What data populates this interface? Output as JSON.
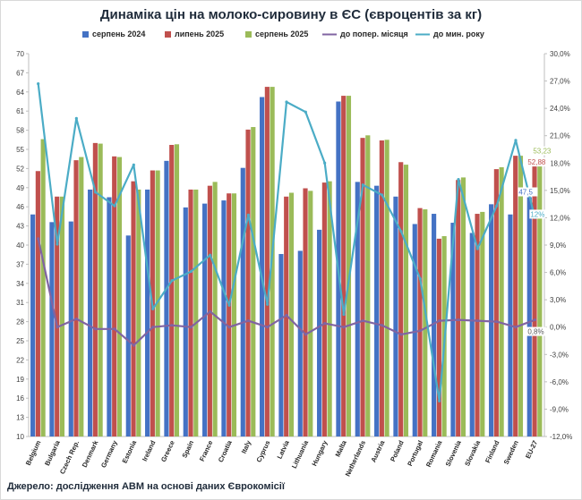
{
  "title": "Динаміка цін на молоко-сировину в ЄС (євроцентів за кг)",
  "source": "Джерело: дослідження АВМ на основі даних Єврокомісії",
  "chart_data": {
    "type": "bar",
    "categories": [
      "Belgium",
      "Bulgaria",
      "Czech Rep.",
      "Denmark",
      "Germany",
      "Estonia",
      "Ireland",
      "Greece",
      "Spain",
      "France",
      "Croatia",
      "Italy",
      "Cyprus",
      "Latvia",
      "Lithuania",
      "Hungary",
      "Malta",
      "Netherlands",
      "Austria",
      "Poland",
      "Portugal",
      "Romania",
      "Slovenia",
      "Slovakia",
      "Finland",
      "Sweden",
      "EU-27"
    ],
    "series": [
      {
        "name": "серпень 2024",
        "kind": "bar",
        "axis": "left",
        "color": "#4472c4",
        "values": [
          44.8,
          43.6,
          43.7,
          48.7,
          47.5,
          41.5,
          48.7,
          53.2,
          45.9,
          46.5,
          47.0,
          52.1,
          63.2,
          38.6,
          39.1,
          42.4,
          62.5,
          49.9,
          49.3,
          47.6,
          43.3,
          44.9,
          43.5,
          41.9,
          46.4,
          44.8,
          47.5
        ]
      },
      {
        "name": "липень 2025",
        "kind": "bar",
        "axis": "left",
        "color": "#c0504d",
        "values": [
          51.6,
          47.6,
          53.3,
          56.0,
          53.9,
          50.0,
          51.7,
          55.7,
          48.7,
          49.3,
          48.1,
          58.1,
          64.8,
          47.6,
          48.9,
          49.8,
          63.4,
          56.8,
          56.4,
          53.0,
          45.8,
          41.0,
          50.2,
          44.9,
          51.9,
          54.0,
          52.88
        ]
      },
      {
        "name": "серпень 2025",
        "kind": "bar",
        "axis": "left",
        "color": "#9bbb59",
        "values": [
          56.6,
          47.6,
          53.8,
          55.9,
          53.8,
          48.7,
          51.7,
          55.8,
          48.7,
          49.9,
          48.1,
          58.5,
          64.8,
          48.2,
          48.5,
          50.0,
          63.4,
          57.2,
          56.5,
          52.6,
          45.6,
          41.4,
          50.6,
          45.2,
          52.2,
          54.0,
          53.23
        ]
      },
      {
        "name": "до попер. місяця",
        "kind": "line",
        "axis": "right",
        "color": "#8064a2",
        "values": [
          9.7,
          0.0,
          0.9,
          -0.2,
          -0.2,
          -2.0,
          0.0,
          0.2,
          0.0,
          1.7,
          0.0,
          0.7,
          0.0,
          1.3,
          -0.8,
          0.4,
          0.0,
          0.7,
          0.2,
          -0.8,
          -0.4,
          0.7,
          0.8,
          0.7,
          0.6,
          0.0,
          0.8
        ]
      },
      {
        "name": "до мин. року",
        "kind": "line",
        "axis": "right",
        "color": "#4bacc6",
        "values": [
          26.7,
          9.1,
          22.9,
          14.8,
          13.3,
          17.8,
          2.0,
          5.1,
          6.1,
          7.9,
          2.4,
          12.3,
          2.5,
          24.7,
          23.6,
          18.0,
          1.4,
          15.6,
          14.5,
          10.5,
          5.3,
          -8.1,
          16.2,
          8.6,
          13.3,
          20.5,
          12.0
        ]
      }
    ],
    "ylim": [
      10,
      70
    ],
    "yticks": [
      10,
      13,
      16,
      19,
      22,
      25,
      28,
      31,
      34,
      37,
      40,
      43,
      46,
      49,
      52,
      55,
      58,
      61,
      64,
      67,
      70
    ],
    "y2lim": [
      -12,
      30
    ],
    "y2ticks": [
      "-12,0%",
      "-9,0%",
      "-6,0%",
      "-3,0%",
      "0,0%",
      "3,0%",
      "6,0%",
      "9,0%",
      "12,0%",
      "15,0%",
      "18,0%",
      "21,0%",
      "24,0%",
      "27,0%",
      "30,0%"
    ],
    "data_labels": [
      {
        "text": "53,23",
        "color": "#9bbb59"
      },
      {
        "text": "52,88",
        "color": "#c0504d"
      },
      {
        "text": "47,5",
        "color": "#4472c4"
      },
      {
        "text": "12%",
        "color": "#4bacc6"
      },
      {
        "text": "0,8%",
        "color": "#595959"
      }
    ],
    "legend_position": "top",
    "grid": false
  }
}
